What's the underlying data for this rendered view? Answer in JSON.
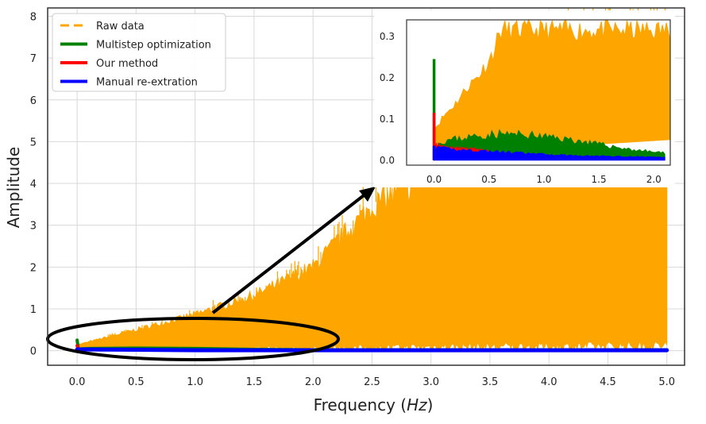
{
  "chart_data": {
    "type": "line",
    "title": "",
    "xlabel_prefix": "Frequency (",
    "xlabel_unit": "Hz",
    "xlabel_suffix": ")",
    "ylabel": "Amplitude",
    "xlim": [
      -0.25,
      5.15
    ],
    "ylim": [
      -0.35,
      8.2
    ],
    "x_ticks": [
      "0.0",
      "0.5",
      "1.0",
      "1.5",
      "2.0",
      "2.5",
      "3.0",
      "3.5",
      "4.0",
      "4.5",
      "5.0"
    ],
    "y_ticks": [
      "0",
      "1",
      "2",
      "3",
      "4",
      "5",
      "6",
      "7",
      "8"
    ],
    "grid": true,
    "legend_position": "top-left",
    "series": [
      {
        "name": "Raw data",
        "style": "dashed",
        "color": "#ffa500",
        "description_points_x": [
          0.0,
          0.5,
          1.0,
          1.5,
          2.0,
          2.5,
          3.0,
          3.5,
          4.0,
          4.5,
          5.0
        ],
        "envelope_upper": [
          0.15,
          0.55,
          0.95,
          1.45,
          2.2,
          3.8,
          4.6,
          6.2,
          7.3,
          7.9,
          8.1
        ],
        "envelope_lower": [
          0.0,
          0.02,
          0.05,
          0.1,
          0.12,
          0.15,
          0.18,
          0.2,
          0.2,
          0.22,
          0.25
        ]
      },
      {
        "name": "Multistep optimization",
        "style": "solid",
        "color": "#008000",
        "x": [
          0.0,
          0.01,
          0.02,
          0.1,
          0.5,
          1.0,
          1.5,
          2.0,
          2.5,
          3.0,
          3.5,
          4.0,
          4.5,
          5.0
        ],
        "y": [
          0.25,
          0.05,
          0.04,
          0.05,
          0.06,
          0.05,
          0.03,
          0.02,
          0.02,
          0.02,
          0.02,
          0.02,
          0.02,
          0.02
        ]
      },
      {
        "name": "Our method",
        "style": "solid",
        "color": "#ff0000",
        "x": [
          0.0,
          0.01,
          0.1,
          0.5,
          1.0,
          2.0,
          5.0
        ],
        "y": [
          0.12,
          0.03,
          0.03,
          0.02,
          0.015,
          0.01,
          0.01
        ]
      },
      {
        "name": "Manual re-extration",
        "style": "solid",
        "color": "#0000ff",
        "x": [
          0.0,
          0.5,
          1.0,
          2.0,
          3.0,
          4.0,
          5.0
        ],
        "y": [
          0.03,
          0.02,
          0.01,
          0.01,
          0.01,
          0.01,
          0.01
        ]
      }
    ],
    "inset": {
      "xlim": [
        -0.25,
        2.15
      ],
      "ylim": [
        -0.012,
        0.34
      ],
      "x_ticks": [
        "0.0",
        "0.5",
        "1.0",
        "1.5",
        "2.0"
      ],
      "y_ticks": [
        "0.0",
        "0.1",
        "0.2",
        "0.3"
      ],
      "raw_upper_x": [
        0.0,
        0.1,
        0.2,
        0.3,
        0.4,
        0.5,
        0.55,
        0.6,
        0.7,
        2.15
      ],
      "raw_upper_y": [
        0.08,
        0.12,
        0.15,
        0.19,
        0.22,
        0.26,
        0.29,
        0.34,
        0.34,
        0.34
      ],
      "raw_lower_x": [
        0.0,
        0.5,
        1.0,
        1.5,
        2.0,
        2.15
      ],
      "raw_lower_y": [
        0.0,
        0.02,
        0.035,
        0.05,
        0.05,
        0.05
      ],
      "green_x": [
        0.0,
        0.1,
        0.3,
        0.6,
        0.9,
        1.2,
        1.5,
        1.8,
        2.1
      ],
      "green_upper": [
        0.04,
        0.055,
        0.065,
        0.075,
        0.07,
        0.06,
        0.045,
        0.03,
        0.02
      ],
      "green_lower": [
        0.0,
        0.01,
        0.01,
        0.01,
        0.008,
        0.007,
        0.005,
        0.004,
        0.003
      ],
      "red_x": [
        0.0,
        0.1,
        0.2,
        0.35,
        0.5
      ],
      "red_upper": [
        0.045,
        0.035,
        0.035,
        0.03,
        0.025
      ],
      "red_lower": [
        0.005,
        0.01,
        0.01,
        0.01,
        0.01
      ],
      "blue_x": [
        0.0,
        0.2,
        0.5,
        0.8,
        1.1,
        1.4,
        1.8,
        2.1
      ],
      "blue_upper": [
        0.035,
        0.03,
        0.025,
        0.02,
        0.015,
        0.012,
        0.01,
        0.008
      ],
      "blue_lower": [
        0.0,
        0.0,
        0.0,
        0.0,
        0.0,
        0.0,
        0.0,
        0.0
      ]
    }
  }
}
